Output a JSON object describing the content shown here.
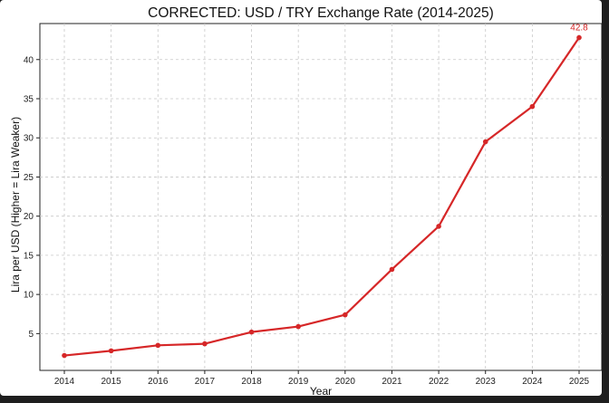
{
  "chart_data": {
    "type": "line",
    "title": "CORRECTED: USD / TRY Exchange Rate (2014-2025)",
    "xlabel": "Year",
    "ylabel": "Lira per USD (Higher = Lira Weaker)",
    "x": [
      "2014",
      "2015",
      "2016",
      "2017",
      "2018",
      "2019",
      "2020",
      "2021",
      "2022",
      "2023",
      "2024",
      "2025"
    ],
    "series": [
      {
        "values": [
          2.2,
          2.8,
          3.5,
          3.7,
          5.2,
          5.9,
          7.4,
          13.2,
          18.7,
          29.5,
          34.0,
          42.8
        ]
      }
    ],
    "yticks": [
      5,
      10,
      15,
      20,
      25,
      30,
      35,
      40
    ],
    "ylim": [
      0.3,
      44.6
    ],
    "grid": true,
    "line_color": "#d62728",
    "annotation": {
      "x": "2025",
      "y": 42.8,
      "text": "42.8",
      "color": "#d62728"
    }
  }
}
